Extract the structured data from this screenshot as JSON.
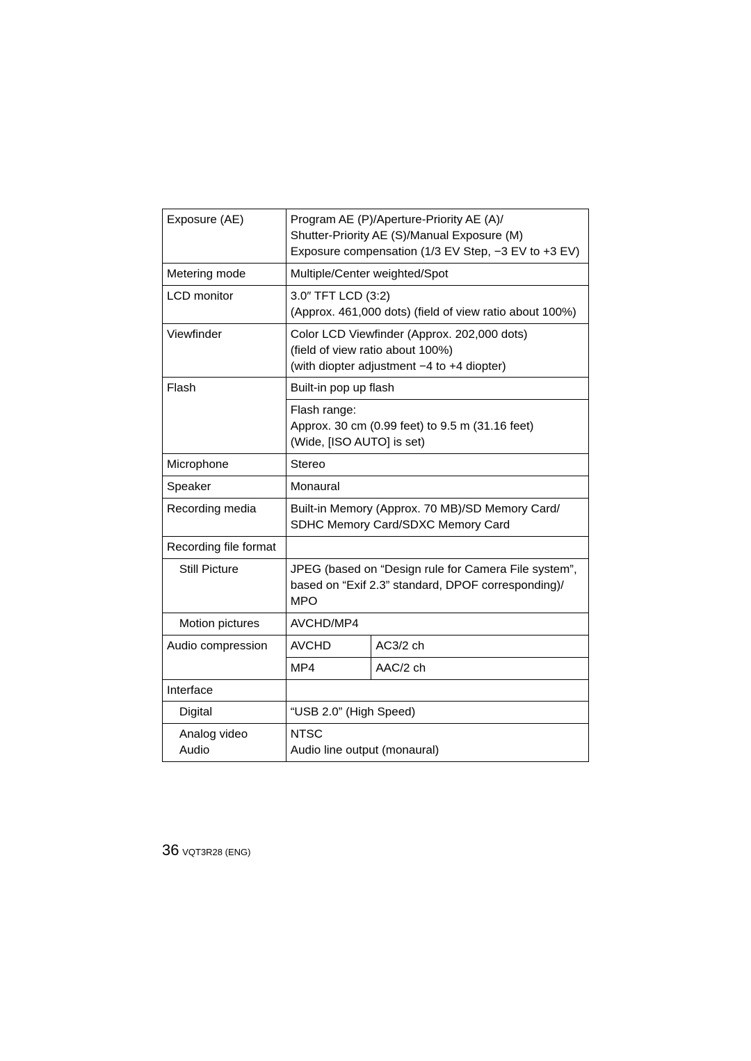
{
  "rows": {
    "exposure": {
      "label": "Exposure (AE)",
      "value": "Program AE (P)/Aperture-Priority AE (A)/\nShutter-Priority AE (S)/Manual Exposure (M)\nExposure compensation (1/3 EV Step, −3 EV to +3 EV)"
    },
    "metering": {
      "label": "Metering mode",
      "value": "Multiple/Center weighted/Spot"
    },
    "lcd": {
      "label": "LCD monitor",
      "value": "3.0″ TFT LCD (3:2)\n(Approx. 461,000 dots) (field of view ratio about 100%)"
    },
    "viewfinder": {
      "label": "Viewfinder",
      "value": "Color LCD Viewfinder (Approx. 202,000 dots)\n(field of view ratio about 100%)\n(with diopter adjustment −4 to +4 diopter)"
    },
    "flash": {
      "label": "Flash",
      "value1": "Built-in pop up flash",
      "value2": "Flash range:\nApprox. 30 cm (0.99 feet) to 9.5 m (31.16 feet)\n(Wide, [ISO AUTO] is set)"
    },
    "mic": {
      "label": "Microphone",
      "value": "Stereo"
    },
    "speaker": {
      "label": "Speaker",
      "value": "Monaural"
    },
    "recmedia": {
      "label": "Recording media",
      "value": "Built-in Memory (Approx. 70 MB)/SD Memory Card/\nSDHC Memory Card/SDXC Memory Card"
    },
    "recfile": {
      "label": "Recording file format"
    },
    "still": {
      "label": "Still Picture",
      "value": "JPEG (based on “Design rule for Camera File system”, based on “Exif 2.3” standard, DPOF corresponding)/\nMPO"
    },
    "motion": {
      "label": "Motion pictures",
      "value": "AVCHD/MP4"
    },
    "audiocomp": {
      "label": "Audio compression",
      "a1": "AVCHD",
      "b1": "AC3/2 ch",
      "a2": "MP4",
      "b2": "AAC/2 ch"
    },
    "interface": {
      "label": "Interface"
    },
    "digital": {
      "label": "Digital",
      "value": "“USB 2.0” (High Speed)"
    },
    "analog": {
      "label": "Analog video\nAudio",
      "value": "NTSC\nAudio line output (monaural)"
    }
  },
  "footer": {
    "page": "36",
    "code": "VQT3R28 (ENG)"
  }
}
